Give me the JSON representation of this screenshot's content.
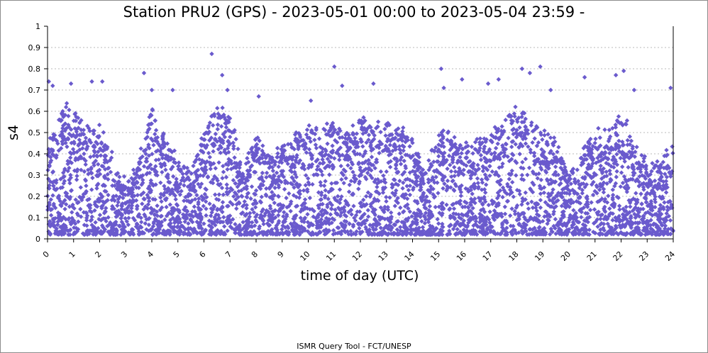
{
  "footer": "ISMR Query Tool - FCT/UNESP",
  "colors": {
    "points": "#6a5acd",
    "grid": "#b8b8b8",
    "axis": "#000000"
  },
  "chart_data": {
    "type": "scatter",
    "title": "Station PRU2 (GPS) - 2023-05-01 00:00 to 2023-05-04 23:59 -",
    "xlabel": "time of day (UTC)",
    "ylabel": "s4",
    "xlim": [
      0,
      24
    ],
    "ylim": [
      0,
      1
    ],
    "x_ticks": [
      "0",
      "1",
      "2",
      "3",
      "4",
      "5",
      "6",
      "7",
      "8",
      "9",
      "10",
      "11",
      "12",
      "13",
      "14",
      "15",
      "16",
      "17",
      "18",
      "19",
      "20",
      "21",
      "22",
      "23",
      "24"
    ],
    "y_ticks": [
      "0",
      "0.1",
      "0.2",
      "0.3",
      "0.4",
      "0.5",
      "0.6",
      "0.7",
      "0.8",
      "0.9",
      "1"
    ],
    "grid": true,
    "marker": "diamond",
    "series": [
      {
        "envelope_upper": [
          [
            0.0,
            0.45
          ],
          [
            0.5,
            0.62
          ],
          [
            1.0,
            0.6
          ],
          [
            1.5,
            0.55
          ],
          [
            2.0,
            0.52
          ],
          [
            2.5,
            0.38
          ],
          [
            3.0,
            0.25
          ],
          [
            3.5,
            0.38
          ],
          [
            4.0,
            0.62
          ],
          [
            4.5,
            0.48
          ],
          [
            5.0,
            0.36
          ],
          [
            5.5,
            0.33
          ],
          [
            6.0,
            0.52
          ],
          [
            6.5,
            0.62
          ],
          [
            7.0,
            0.58
          ],
          [
            7.5,
            0.32
          ],
          [
            8.0,
            0.5
          ],
          [
            8.5,
            0.38
          ],
          [
            9.0,
            0.45
          ],
          [
            9.5,
            0.5
          ],
          [
            10.0,
            0.52
          ],
          [
            10.5,
            0.54
          ],
          [
            11.0,
            0.55
          ],
          [
            11.5,
            0.52
          ],
          [
            12.0,
            0.56
          ],
          [
            12.5,
            0.52
          ],
          [
            13.0,
            0.55
          ],
          [
            13.5,
            0.52
          ],
          [
            14.0,
            0.48
          ],
          [
            14.5,
            0.33
          ],
          [
            15.0,
            0.52
          ],
          [
            15.5,
            0.5
          ],
          [
            16.0,
            0.45
          ],
          [
            16.5,
            0.48
          ],
          [
            17.0,
            0.5
          ],
          [
            17.5,
            0.55
          ],
          [
            18.0,
            0.62
          ],
          [
            18.5,
            0.58
          ],
          [
            19.0,
            0.52
          ],
          [
            19.5,
            0.45
          ],
          [
            20.0,
            0.3
          ],
          [
            20.5,
            0.42
          ],
          [
            21.0,
            0.5
          ],
          [
            21.5,
            0.52
          ],
          [
            22.0,
            0.58
          ],
          [
            22.5,
            0.5
          ],
          [
            23.0,
            0.35
          ],
          [
            23.5,
            0.38
          ],
          [
            24.0,
            0.45
          ]
        ],
        "outliers": [
          [
            0.05,
            0.74
          ],
          [
            0.2,
            0.72
          ],
          [
            0.9,
            0.73
          ],
          [
            1.7,
            0.74
          ],
          [
            2.1,
            0.74
          ],
          [
            3.7,
            0.78
          ],
          [
            4.0,
            0.7
          ],
          [
            4.8,
            0.7
          ],
          [
            6.3,
            0.87
          ],
          [
            6.7,
            0.77
          ],
          [
            6.9,
            0.7
          ],
          [
            8.1,
            0.67
          ],
          [
            10.1,
            0.65
          ],
          [
            11.0,
            0.81
          ],
          [
            11.3,
            0.72
          ],
          [
            12.5,
            0.73
          ],
          [
            15.1,
            0.8
          ],
          [
            15.2,
            0.71
          ],
          [
            15.9,
            0.75
          ],
          [
            16.9,
            0.73
          ],
          [
            17.3,
            0.75
          ],
          [
            18.2,
            0.8
          ],
          [
            18.5,
            0.78
          ],
          [
            18.9,
            0.81
          ],
          [
            19.3,
            0.7
          ],
          [
            20.6,
            0.76
          ],
          [
            21.8,
            0.77
          ],
          [
            22.1,
            0.79
          ],
          [
            22.5,
            0.7
          ],
          [
            23.9,
            0.71
          ]
        ],
        "baseline": 0.02
      }
    ]
  }
}
